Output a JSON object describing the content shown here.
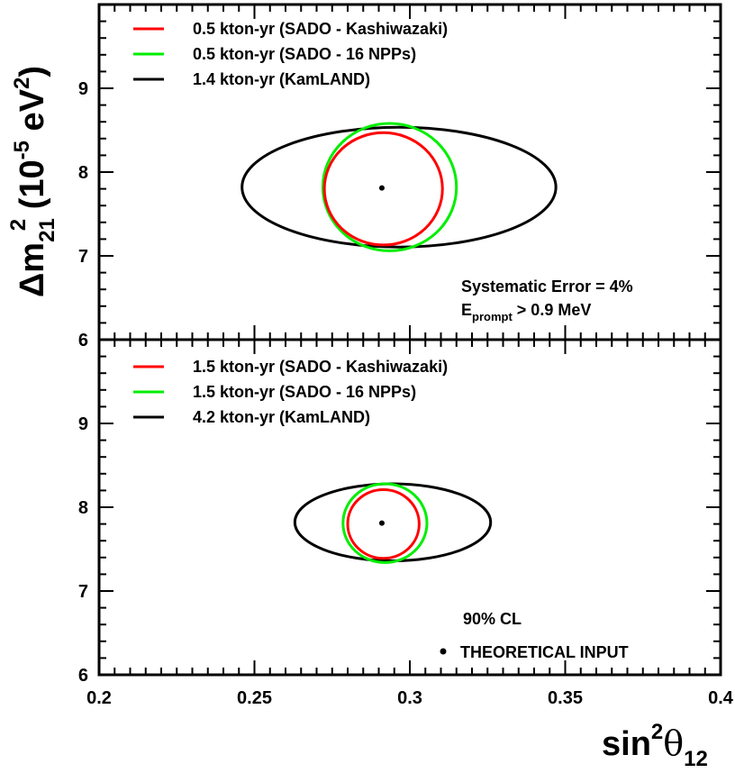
{
  "colors": {
    "red": "#ff0000",
    "green": "#00ee00",
    "black": "#000000"
  },
  "chart_data": [
    {
      "type": "scatter",
      "panel": "top",
      "xlim": [
        0.2,
        0.4
      ],
      "ylim": [
        6,
        10
      ],
      "ylabel": {
        "main": "Δm",
        "sub": "21",
        "sup": "2",
        "unit_open": " (10",
        "unit_sup": "-5",
        "unit_close": " eV",
        "unit_sup2": "2",
        "unit_end": ")"
      },
      "yticks": [
        "6",
        "7",
        "8",
        "9"
      ],
      "legend": [
        {
          "color": "#ff0000",
          "label": "0.5 kton-yr (SADO - Kashiwazaki)"
        },
        {
          "color": "#00ee00",
          "label": "0.5 kton-yr (SADO - 16 NPPs)"
        },
        {
          "color": "#000000",
          "label": "1.4 kton-yr (KamLAND)"
        }
      ],
      "contours": [
        {
          "color": "#000000",
          "center": [
            0.2965,
            7.82
          ],
          "rx": 0.0505,
          "ry": 0.715
        },
        {
          "color": "#00ee00",
          "center": [
            0.2935,
            7.82
          ],
          "rx": 0.0215,
          "ry": 0.76
        },
        {
          "color": "#ff0000",
          "center": [
            0.2915,
            7.8
          ],
          "rx": 0.019,
          "ry": 0.67
        }
      ],
      "point": {
        "x": 0.291,
        "y": 7.81
      },
      "annotations": {
        "syst": "Systematic Error = 4%",
        "eprompt_main": "E",
        "eprompt_sub": "prompt",
        "eprompt_rest": " > 0.9 MeV"
      }
    },
    {
      "type": "scatter",
      "panel": "bottom",
      "xlim": [
        0.2,
        0.4
      ],
      "ylim": [
        6,
        10
      ],
      "xticks": [
        "0.2",
        "0.25",
        "0.3",
        "0.35",
        "0.4"
      ],
      "yticks": [
        "6",
        "7",
        "8",
        "9"
      ],
      "xlabel": {
        "main": "sin",
        "sup": "2",
        "theta": "θ",
        "sub": "12"
      },
      "legend": [
        {
          "color": "#ff0000",
          "label": "1.5 kton-yr (SADO - Kashiwazaki)"
        },
        {
          "color": "#00ee00",
          "label": "1.5 kton-yr (SADO - 16 NPPs)"
        },
        {
          "color": "#000000",
          "label": "4.2 kton-yr (KamLAND)"
        }
      ],
      "contours": [
        {
          "color": "#000000",
          "center": [
            0.2945,
            7.82
          ],
          "rx": 0.0315,
          "ry": 0.46
        },
        {
          "color": "#00ee00",
          "center": [
            0.292,
            7.81
          ],
          "rx": 0.0135,
          "ry": 0.47
        },
        {
          "color": "#ff0000",
          "center": [
            0.2915,
            7.8
          ],
          "rx": 0.0115,
          "ry": 0.41
        }
      ],
      "point": {
        "x": 0.291,
        "y": 7.81
      },
      "annotations": {
        "cl": "90% CL",
        "theory": "THEORETICAL INPUT"
      }
    }
  ]
}
